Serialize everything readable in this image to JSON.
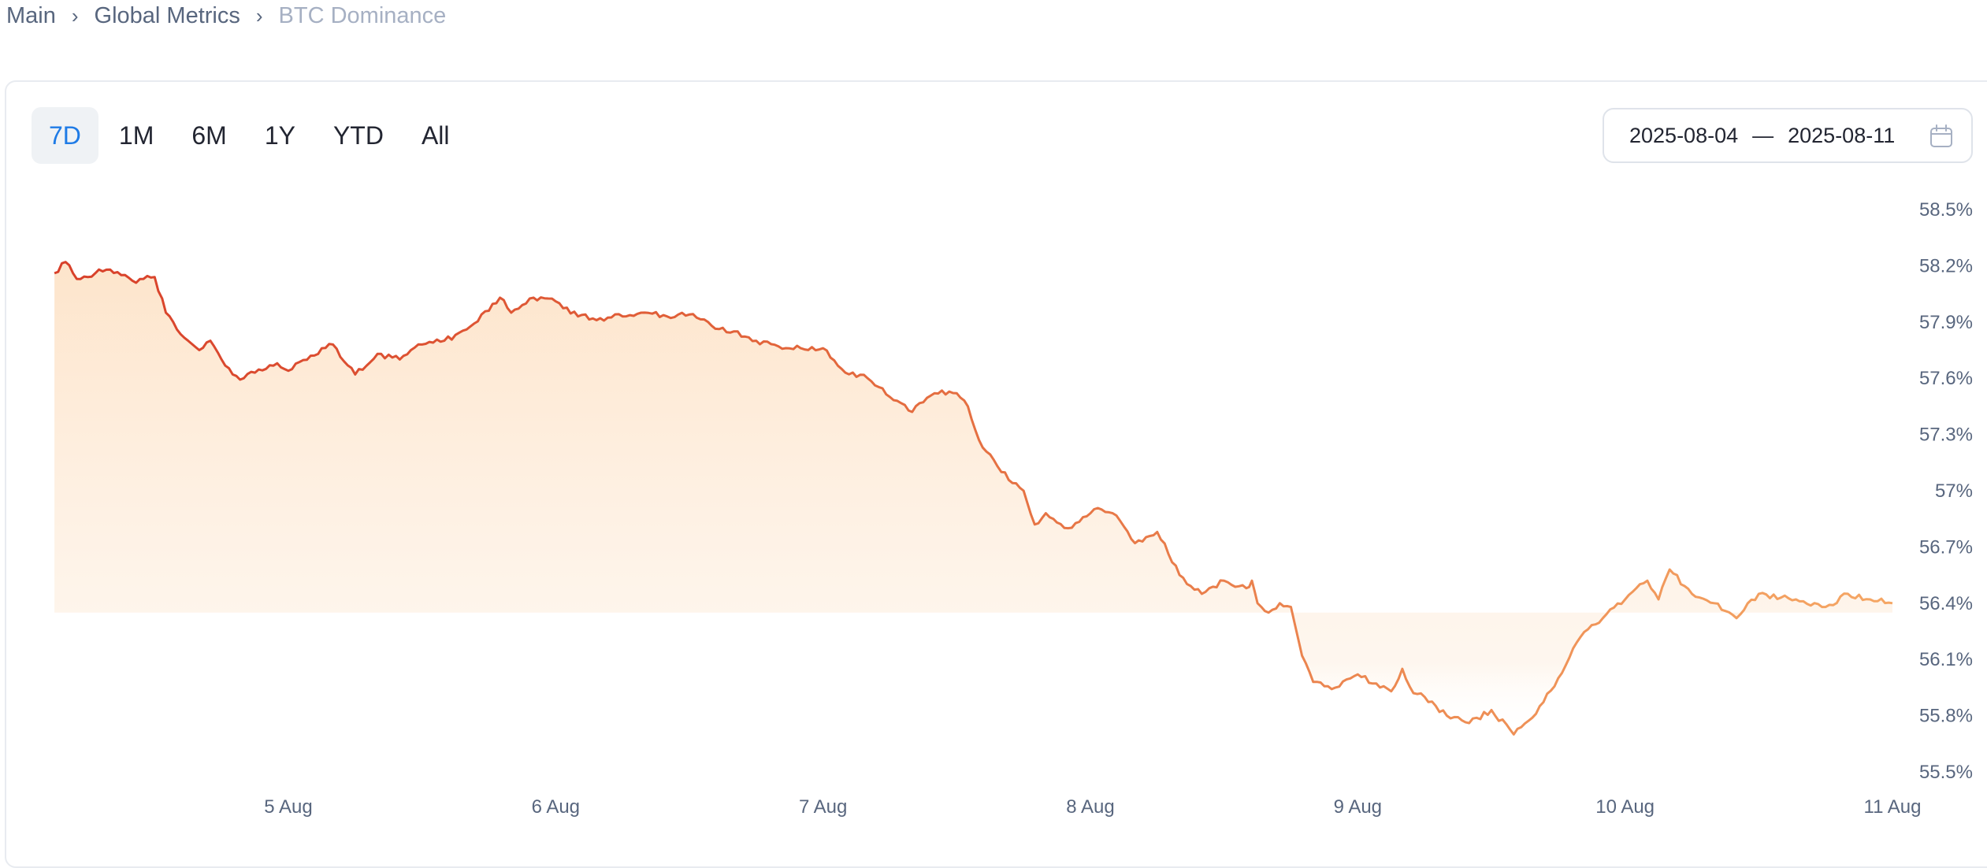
{
  "breadcrumb": {
    "items": [
      "Main",
      "Global Metrics",
      "BTC Dominance"
    ]
  },
  "range_tabs": {
    "items": [
      "7D",
      "1M",
      "6M",
      "1Y",
      "YTD",
      "All"
    ],
    "active": "7D"
  },
  "date_range": {
    "start": "2025-08-04",
    "separator": "—",
    "end": "2025-08-11"
  },
  "icons": [
    "chevron-right-icon",
    "calendar-icon"
  ],
  "colors": {
    "line_start": "#d8402a",
    "line_end": "#f5a765",
    "area_fill": "#fde6cf",
    "active_tab": "#1e7be6"
  },
  "chart_data": {
    "type": "area",
    "title": "",
    "xlabel": "",
    "ylabel": "",
    "y_unit": "%",
    "ylim": [
      55.5,
      58.5
    ],
    "y_ticks": [
      {
        "value": 58.5,
        "label": "58.5%"
      },
      {
        "value": 58.2,
        "label": "58.2%"
      },
      {
        "value": 57.9,
        "label": "57.9%"
      },
      {
        "value": 57.6,
        "label": "57.6%"
      },
      {
        "value": 57.3,
        "label": "57.3%"
      },
      {
        "value": 57.0,
        "label": "57%"
      },
      {
        "value": 56.7,
        "label": "56.7%"
      },
      {
        "value": 56.4,
        "label": "56.4%"
      },
      {
        "value": 56.1,
        "label": "56.1%"
      },
      {
        "value": 55.8,
        "label": "55.8%"
      },
      {
        "value": 55.5,
        "label": "55.5%"
      }
    ],
    "x_range": [
      "2025-08-04 03:00",
      "2025-08-11 00:00"
    ],
    "x_ticks": [
      {
        "date": "2025-08-05",
        "label": "5 Aug"
      },
      {
        "date": "2025-08-06",
        "label": "6 Aug"
      },
      {
        "date": "2025-08-07",
        "label": "7 Aug"
      },
      {
        "date": "2025-08-08",
        "label": "8 Aug"
      },
      {
        "date": "2025-08-09",
        "label": "9 Aug"
      },
      {
        "date": "2025-08-10",
        "label": "10 Aug"
      },
      {
        "date": "2025-08-11",
        "label": "11 Aug"
      }
    ],
    "grid": false,
    "legend": "none",
    "series": [
      {
        "x": [
          "2025-08-04 03:00",
          "2025-08-04 04:00",
          "2025-08-04 05:00",
          "2025-08-04 06:00",
          "2025-08-04 07:00",
          "2025-08-04 08:00",
          "2025-08-04 09:00",
          "2025-08-04 10:00",
          "2025-08-04 11:00",
          "2025-08-04 12:00",
          "2025-08-04 13:00",
          "2025-08-04 14:00",
          "2025-08-04 15:00",
          "2025-08-04 16:00",
          "2025-08-04 17:00",
          "2025-08-04 18:00",
          "2025-08-04 19:00",
          "2025-08-04 20:00",
          "2025-08-04 21:00",
          "2025-08-04 22:00",
          "2025-08-04 23:00",
          "2025-08-05 00:00",
          "2025-08-05 02:00",
          "2025-08-05 04:00",
          "2025-08-05 06:00",
          "2025-08-05 08:00",
          "2025-08-05 10:00",
          "2025-08-05 12:00",
          "2025-08-05 13:00",
          "2025-08-05 14:00",
          "2025-08-05 16:00",
          "2025-08-05 18:00",
          "2025-08-05 19:00",
          "2025-08-05 20:00",
          "2025-08-05 22:00",
          "2025-08-06 00:00",
          "2025-08-06 02:00",
          "2025-08-06 04:00",
          "2025-08-06 06:00",
          "2025-08-06 08:00",
          "2025-08-06 10:00",
          "2025-08-06 12:00",
          "2025-08-06 14:00",
          "2025-08-06 16:00",
          "2025-08-06 18:00",
          "2025-08-06 20:00",
          "2025-08-06 22:00",
          "2025-08-07 00:00",
          "2025-08-07 02:00",
          "2025-08-07 04:00",
          "2025-08-07 06:00",
          "2025-08-07 08:00",
          "2025-08-07 10:00",
          "2025-08-07 12:00",
          "2025-08-07 13:00",
          "2025-08-07 14:00",
          "2025-08-07 16:00",
          "2025-08-07 18:00",
          "2025-08-07 19:00",
          "2025-08-07 20:00",
          "2025-08-07 22:00",
          "2025-08-08 00:00",
          "2025-08-08 01:00",
          "2025-08-08 02:00",
          "2025-08-08 04:00",
          "2025-08-08 06:00",
          "2025-08-08 08:00",
          "2025-08-08 10:00",
          "2025-08-08 12:00",
          "2025-08-08 14:00",
          "2025-08-08 14:30",
          "2025-08-08 15:00",
          "2025-08-08 16:00",
          "2025-08-08 17:00",
          "2025-08-08 18:00",
          "2025-08-08 19:00",
          "2025-08-08 20:00",
          "2025-08-08 22:00",
          "2025-08-09 00:00",
          "2025-08-09 02:00",
          "2025-08-09 03:00",
          "2025-08-09 04:00",
          "2025-08-09 05:00",
          "2025-08-09 06:00",
          "2025-08-09 08:00",
          "2025-08-09 10:00",
          "2025-08-09 12:00",
          "2025-08-09 14:00",
          "2025-08-09 16:00",
          "2025-08-09 18:00",
          "2025-08-09 20:00",
          "2025-08-09 22:00",
          "2025-08-10 00:00",
          "2025-08-10 01:00",
          "2025-08-10 02:00",
          "2025-08-10 03:00",
          "2025-08-10 04:00",
          "2025-08-10 06:00",
          "2025-08-10 08:00",
          "2025-08-10 10:00",
          "2025-08-10 12:00",
          "2025-08-10 14:00",
          "2025-08-10 16:00",
          "2025-08-10 18:00",
          "2025-08-10 20:00",
          "2025-08-10 22:00",
          "2025-08-11 00:00"
        ],
        "y": [
          58.16,
          58.22,
          58.13,
          58.14,
          58.18,
          58.18,
          58.15,
          58.12,
          58.13,
          58.14,
          57.95,
          57.86,
          57.8,
          57.75,
          57.8,
          57.7,
          57.62,
          57.6,
          57.63,
          57.65,
          57.68,
          57.64,
          57.72,
          57.78,
          57.62,
          57.73,
          57.7,
          57.78,
          57.79,
          57.8,
          57.86,
          57.96,
          58.03,
          57.95,
          58.03,
          58.01,
          57.93,
          57.92,
          57.93,
          57.95,
          57.93,
          57.94,
          57.88,
          57.85,
          57.8,
          57.77,
          57.76,
          57.76,
          57.63,
          57.6,
          57.5,
          57.42,
          57.52,
          57.52,
          57.45,
          57.27,
          57.1,
          57.0,
          56.82,
          56.88,
          56.8,
          56.88,
          56.9,
          56.88,
          56.72,
          56.78,
          56.55,
          56.45,
          56.52,
          56.48,
          56.52,
          56.4,
          56.35,
          56.4,
          56.38,
          56.12,
          55.98,
          55.95,
          56.02,
          55.95,
          55.93,
          56.05,
          55.92,
          55.9,
          55.8,
          55.76,
          55.83,
          55.7,
          55.81,
          56.0,
          56.22,
          56.32,
          56.42,
          56.48,
          56.52,
          56.42,
          56.58,
          56.45,
          56.4,
          56.32,
          56.45,
          56.43,
          56.41,
          56.38,
          56.45,
          56.42,
          56.4
        ]
      }
    ]
  }
}
